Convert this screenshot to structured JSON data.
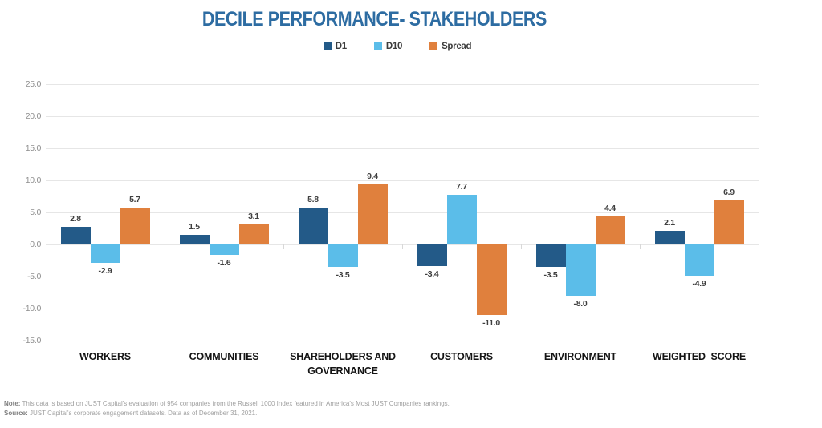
{
  "chart": {
    "title": "DECILE PERFORMANCE- STAKEHOLDERS",
    "title_color": "#2d6ca2"
  },
  "chart_data": {
    "type": "bar",
    "title": "DECILE PERFORMANCE- STAKEHOLDERS",
    "categories": [
      "WORKERS",
      "COMMUNITIES",
      "SHAREHOLDERS AND GOVERNANCE",
      "CUSTOMERS",
      "ENVIRONMENT",
      "WEIGHTED_SCORE"
    ],
    "series": [
      {
        "name": "D1",
        "color": "#235a88",
        "values": [
          2.8,
          1.5,
          5.8,
          -3.4,
          -3.5,
          2.1
        ]
      },
      {
        "name": "D10",
        "color": "#5bbde9",
        "values": [
          -2.9,
          -1.6,
          -3.5,
          7.7,
          -8.0,
          -4.9
        ]
      },
      {
        "name": "Spread",
        "color": "#e0803d",
        "values": [
          5.7,
          3.1,
          9.4,
          -11.0,
          4.4,
          6.9
        ]
      }
    ],
    "ylim": [
      -15,
      25
    ],
    "yticks": [
      25.0,
      20.0,
      15.0,
      10.0,
      5.0,
      0.0,
      -5.0,
      -10.0,
      -15.0
    ],
    "ytick_labels": [
      "25.0",
      "20.0",
      "15.0",
      "10.0",
      "5.0",
      "0.0",
      "-5.0",
      "-10.0",
      "-15.0"
    ],
    "grid": true,
    "legend_position": "top",
    "value_labels": true,
    "xlabel": "",
    "ylabel": ""
  },
  "footer": {
    "note_label": "Note:",
    "note_text": " This data is based on JUST Capital's evaluation of 954 companies from the Russell 1000 Index featured in America's Most JUST Companies rankings.",
    "source_label": "Source:",
    "source_text": " JUST Capital's corporate engagement datasets. Data as of December 31, 2021."
  }
}
